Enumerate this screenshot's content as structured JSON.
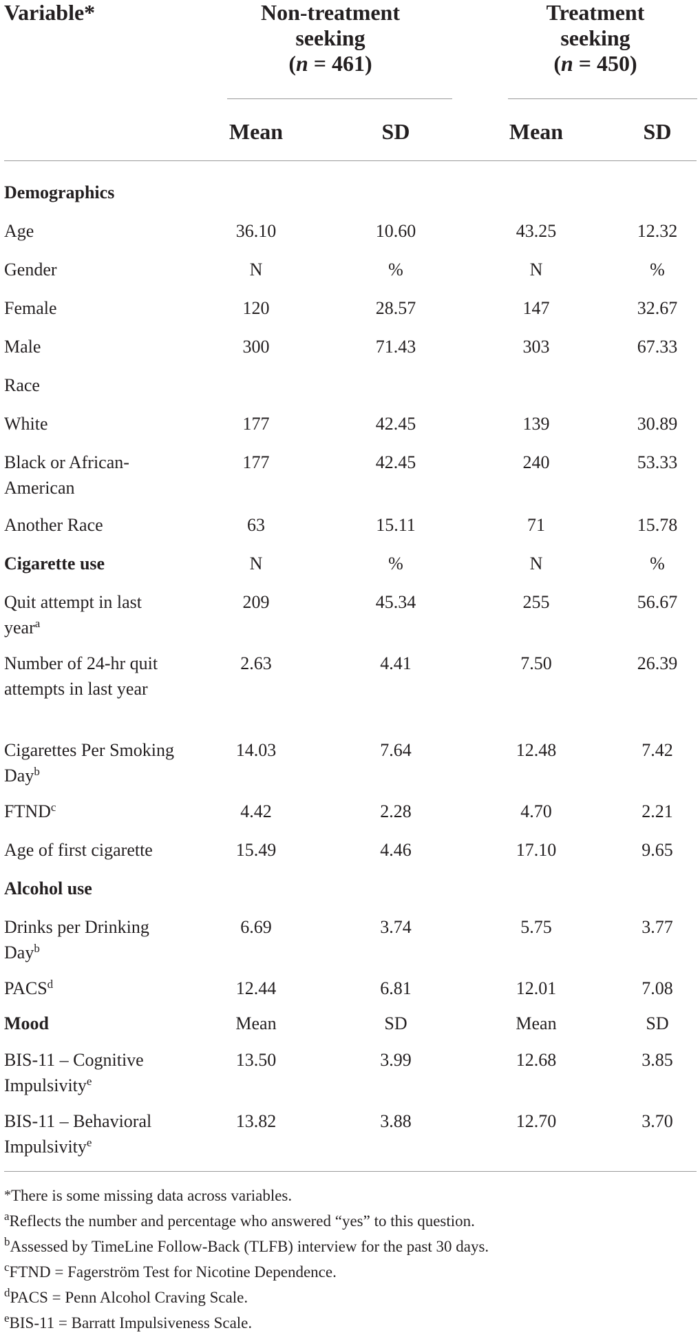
{
  "header": {
    "variable": "Variable*",
    "group1": {
      "line1": "Non-treatment",
      "line2": "seeking",
      "n_open": "(",
      "n_symbol": "n",
      "n_value": " = 461)"
    },
    "group2": {
      "line1": "Treatment",
      "line2": "seeking",
      "n_open": "(",
      "n_symbol": "n",
      "n_value": " = 450)"
    },
    "sub": {
      "mean1": "Mean",
      "sd1": "SD",
      "mean2": "Mean",
      "sd2": "SD"
    }
  },
  "rows": [
    {
      "label": "Demographics",
      "bold": true,
      "cells": [
        "",
        "",
        "",
        ""
      ]
    },
    {
      "label": "Age",
      "cells": [
        "36.10",
        "10.60",
        "43.25",
        "12.32"
      ]
    },
    {
      "label": "Gender",
      "cells": [
        "N",
        "%",
        "N",
        "%"
      ]
    },
    {
      "label": "Female",
      "cells": [
        "120",
        "28.57",
        "147",
        "32.67"
      ]
    },
    {
      "label": "Male",
      "cells": [
        "300",
        "71.43",
        "303",
        "67.33"
      ]
    },
    {
      "label": "Race",
      "cells": [
        "",
        "",
        "",
        ""
      ]
    },
    {
      "label": "White",
      "cells": [
        "177",
        "42.45",
        "139",
        "30.89"
      ]
    },
    {
      "label": "Black or African-American",
      "cells": [
        "177",
        "42.45",
        "240",
        "53.33"
      ]
    },
    {
      "label": "Another Race",
      "cells": [
        "63",
        "15.11",
        "71",
        "15.78"
      ]
    },
    {
      "label": "Cigarette use",
      "bold": true,
      "cells": [
        "N",
        "%",
        "N",
        "%"
      ]
    },
    {
      "label": "Quit attempt in last year",
      "sup": "a",
      "cells": [
        "209",
        "45.34",
        "255",
        "56.67"
      ]
    },
    {
      "label": "Number of 24-hr quit attempts in last year",
      "cells": [
        "2.63",
        "4.41",
        "7.50",
        "26.39"
      ]
    },
    {
      "label": "Cigarettes Per Smoking Day",
      "sup": "b",
      "cells": [
        "14.03",
        "7.64",
        "12.48",
        "7.42"
      ]
    },
    {
      "label": "FTND",
      "sup": "c",
      "cells": [
        "4.42",
        "2.28",
        "4.70",
        "2.21"
      ]
    },
    {
      "label": "Age of first cigarette",
      "cells": [
        "15.49",
        "4.46",
        "17.10",
        "9.65"
      ]
    },
    {
      "label": "Alcohol use",
      "bold": true,
      "cells": [
        "",
        "",
        "",
        ""
      ]
    },
    {
      "label": "Drinks per Drinking Day",
      "sup": "b",
      "cells": [
        "6.69",
        "3.74",
        "5.75",
        "3.77"
      ]
    },
    {
      "label": "PACS",
      "sup": "d",
      "cells": [
        "12.44",
        "6.81",
        "12.01",
        "7.08"
      ]
    },
    {
      "label": "Mood",
      "bold": true,
      "cells": [
        "Mean",
        "SD",
        "Mean",
        "SD"
      ]
    },
    {
      "label": "BIS-11 – Cognitive Impulsivity",
      "sup": "e",
      "cells": [
        "13.50",
        "3.99",
        "12.68",
        "3.85"
      ]
    },
    {
      "label": "BIS-11 – Behavioral Impulsivity",
      "sup": "e",
      "cells": [
        "13.82",
        "3.88",
        "12.70",
        "3.70"
      ]
    }
  ],
  "footnotes": [
    {
      "mark": "*",
      "text": "There is some missing data across variables."
    },
    {
      "mark": "a",
      "text": "Reflects the number and percentage who answered “yes” to this question."
    },
    {
      "mark": "b",
      "text": "Assessed by TimeLine Follow-Back (TLFB) interview for the past 30 days."
    },
    {
      "mark": "c",
      "text": "FTND = Fagerström Test for Nicotine Dependence."
    },
    {
      "mark": "d",
      "text": "PACS = Penn Alcohol Craving Scale."
    },
    {
      "mark": "e",
      "text": "BIS-11 = Barratt Impulsiveness Scale."
    }
  ]
}
